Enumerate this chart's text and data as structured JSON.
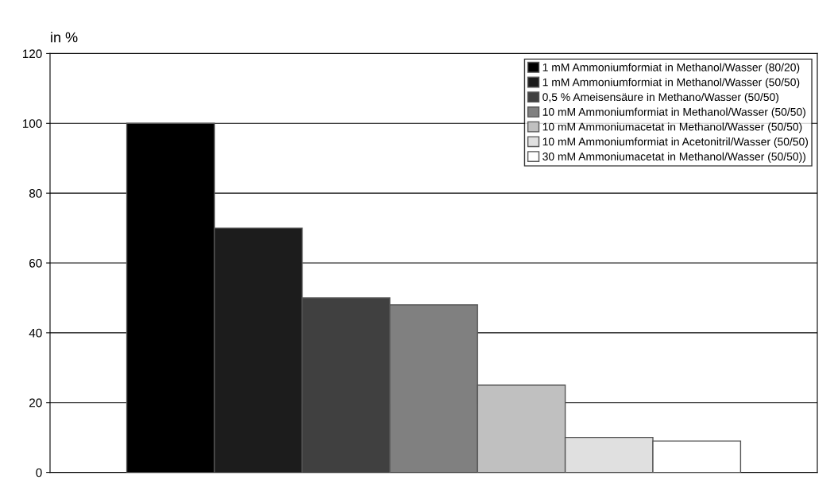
{
  "chart_data": {
    "type": "bar",
    "ylabel": "in %",
    "categories": [
      null
    ],
    "ylim": [
      0,
      120
    ],
    "yticks": [
      0,
      20,
      40,
      60,
      80,
      100,
      120
    ],
    "grid": "y",
    "legend": "top right",
    "series": [
      {
        "name": "1 mM Ammoniumformiat in Methanol/Wasser (80/20)",
        "color": "#000000",
        "values": [
          100
        ]
      },
      {
        "name": "1 mM Ammoniumformiat in Methanol/Wasser (50/50)",
        "color": "#1c1c1c",
        "values": [
          70
        ]
      },
      {
        "name": "0,5 % Ameisensäure in Methano/Wasser (50/50)",
        "color": "#404040",
        "values": [
          50
        ]
      },
      {
        "name": "10 mM Ammoniumformiat in Methanol/Wasser (50/50)",
        "color": "#808080",
        "values": [
          48
        ]
      },
      {
        "name": "10 mM Ammoniumacetat in Methanol/Wasser (50/50)",
        "color": "#c0c0c0",
        "values": [
          25
        ]
      },
      {
        "name": "10 mM Ammoniumformiat in Acetonitril/Wasser (50/50)",
        "color": "#e0e0e0",
        "values": [
          10
        ]
      },
      {
        "name": "30 mM Ammoniumacetat in Methanol/Wasser (50/50))",
        "color": "#ffffff",
        "values": [
          9
        ]
      }
    ]
  }
}
